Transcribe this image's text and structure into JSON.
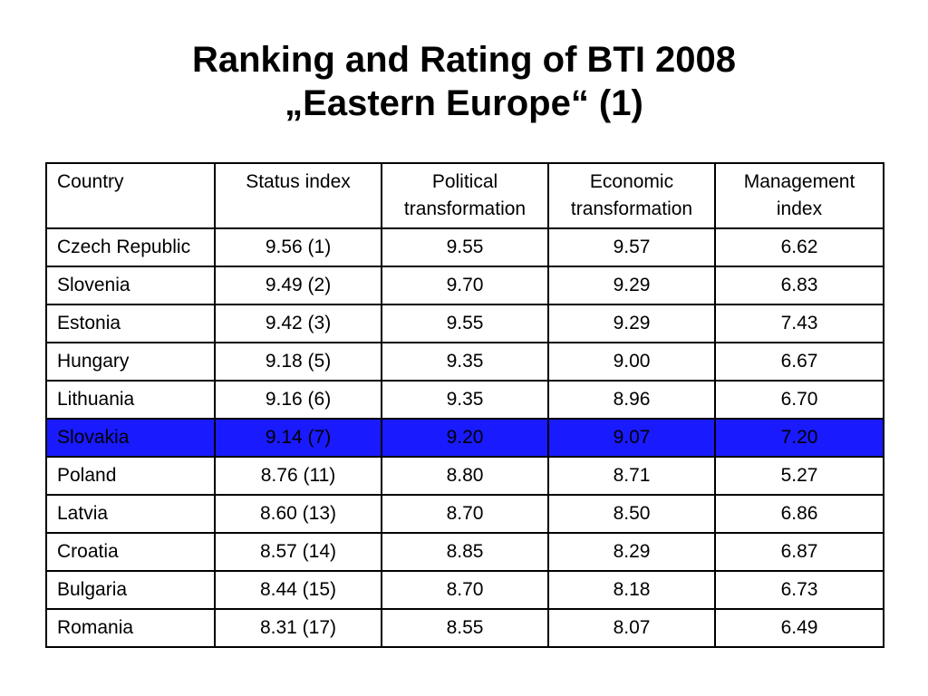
{
  "title": {
    "line1": "Ranking and Rating of BTI 2008",
    "line2": "„Eastern Europe“ (1)"
  },
  "colors": {
    "highlight_row": "#1a1aff"
  },
  "table": {
    "headers": [
      "Country",
      "Status index",
      "Political transformation",
      "Economic transformation",
      "Management index"
    ],
    "highlighted_country": "Slovakia",
    "rows": [
      [
        "Czech Republic",
        "9.56 (1)",
        "9.55",
        "9.57",
        "6.62"
      ],
      [
        "Slovenia",
        "9.49 (2)",
        "9.70",
        "9.29",
        "6.83"
      ],
      [
        "Estonia",
        "9.42 (3)",
        "9.55",
        "9.29",
        "7.43"
      ],
      [
        "Hungary",
        "9.18 (5)",
        "9.35",
        "9.00",
        "6.67"
      ],
      [
        "Lithuania",
        "9.16 (6)",
        "9.35",
        "8.96",
        "6.70"
      ],
      [
        "Slovakia",
        "9.14 (7)",
        "9.20",
        "9.07",
        "7.20"
      ],
      [
        "Poland",
        "8.76 (11)",
        "8.80",
        "8.71",
        "5.27"
      ],
      [
        "Latvia",
        "8.60 (13)",
        "8.70",
        "8.50",
        "6.86"
      ],
      [
        "Croatia",
        "8.57 (14)",
        "8.85",
        "8.29",
        "6.87"
      ],
      [
        "Bulgaria",
        "8.44 (15)",
        "8.70",
        "8.18",
        "6.73"
      ],
      [
        "Romania",
        "8.31 (17)",
        "8.55",
        "8.07",
        "6.49"
      ]
    ]
  }
}
